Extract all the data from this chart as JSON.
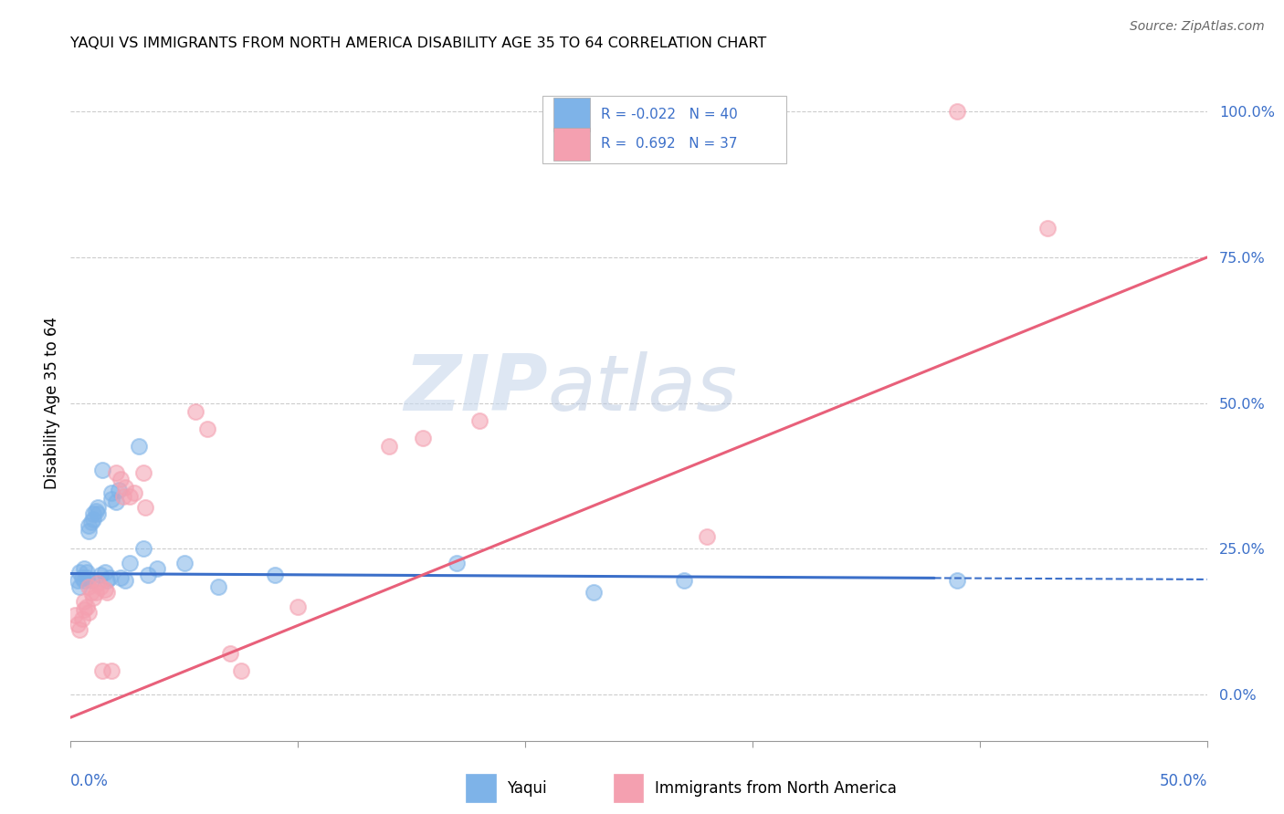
{
  "title": "YAQUI VS IMMIGRANTS FROM NORTH AMERICA DISABILITY AGE 35 TO 64 CORRELATION CHART",
  "source": "Source: ZipAtlas.com",
  "ylabel": "Disability Age 35 to 64",
  "ytick_labels": [
    "0.0%",
    "25.0%",
    "50.0%",
    "75.0%",
    "100.0%"
  ],
  "ytick_values": [
    0.0,
    0.25,
    0.5,
    0.75,
    1.0
  ],
  "xlim": [
    0.0,
    0.5
  ],
  "ylim": [
    -0.08,
    1.08
  ],
  "legend_label_blue": "Yaqui",
  "legend_label_pink": "Immigrants from North America",
  "R_blue": -0.022,
  "N_blue": 40,
  "R_pink": 0.692,
  "N_pink": 37,
  "blue_color": "#7EB3E8",
  "pink_color": "#F4A0B0",
  "blue_line_color": "#3B6FC9",
  "pink_line_color": "#E8607A",
  "watermark_zip": "ZIP",
  "watermark_atlas": "atlas",
  "blue_points": [
    [
      0.003,
      0.195
    ],
    [
      0.004,
      0.185
    ],
    [
      0.004,
      0.21
    ],
    [
      0.005,
      0.2
    ],
    [
      0.006,
      0.215
    ],
    [
      0.006,
      0.195
    ],
    [
      0.007,
      0.2
    ],
    [
      0.007,
      0.21
    ],
    [
      0.008,
      0.29
    ],
    [
      0.008,
      0.28
    ],
    [
      0.009,
      0.295
    ],
    [
      0.009,
      0.195
    ],
    [
      0.01,
      0.3
    ],
    [
      0.01,
      0.31
    ],
    [
      0.011,
      0.315
    ],
    [
      0.012,
      0.32
    ],
    [
      0.012,
      0.31
    ],
    [
      0.013,
      0.205
    ],
    [
      0.014,
      0.385
    ],
    [
      0.015,
      0.21
    ],
    [
      0.016,
      0.195
    ],
    [
      0.017,
      0.2
    ],
    [
      0.018,
      0.335
    ],
    [
      0.018,
      0.345
    ],
    [
      0.02,
      0.33
    ],
    [
      0.021,
      0.35
    ],
    [
      0.022,
      0.2
    ],
    [
      0.024,
      0.195
    ],
    [
      0.026,
      0.225
    ],
    [
      0.03,
      0.425
    ],
    [
      0.032,
      0.25
    ],
    [
      0.034,
      0.205
    ],
    [
      0.038,
      0.215
    ],
    [
      0.05,
      0.225
    ],
    [
      0.065,
      0.185
    ],
    [
      0.09,
      0.205
    ],
    [
      0.17,
      0.225
    ],
    [
      0.27,
      0.195
    ],
    [
      0.39,
      0.195
    ],
    [
      0.23,
      0.175
    ]
  ],
  "pink_points": [
    [
      0.002,
      0.135
    ],
    [
      0.003,
      0.12
    ],
    [
      0.004,
      0.11
    ],
    [
      0.005,
      0.13
    ],
    [
      0.006,
      0.145
    ],
    [
      0.006,
      0.16
    ],
    [
      0.007,
      0.15
    ],
    [
      0.008,
      0.14
    ],
    [
      0.008,
      0.185
    ],
    [
      0.009,
      0.175
    ],
    [
      0.01,
      0.165
    ],
    [
      0.011,
      0.175
    ],
    [
      0.012,
      0.19
    ],
    [
      0.013,
      0.185
    ],
    [
      0.014,
      0.04
    ],
    [
      0.015,
      0.18
    ],
    [
      0.016,
      0.175
    ],
    [
      0.018,
      0.04
    ],
    [
      0.02,
      0.38
    ],
    [
      0.022,
      0.37
    ],
    [
      0.023,
      0.34
    ],
    [
      0.024,
      0.355
    ],
    [
      0.026,
      0.34
    ],
    [
      0.028,
      0.345
    ],
    [
      0.032,
      0.38
    ],
    [
      0.033,
      0.32
    ],
    [
      0.055,
      0.485
    ],
    [
      0.06,
      0.455
    ],
    [
      0.07,
      0.07
    ],
    [
      0.075,
      0.04
    ],
    [
      0.1,
      0.15
    ],
    [
      0.14,
      0.425
    ],
    [
      0.155,
      0.44
    ],
    [
      0.18,
      0.47
    ],
    [
      0.28,
      0.27
    ],
    [
      0.39,
      1.0
    ],
    [
      0.43,
      0.8
    ]
  ],
  "blue_line_x": [
    0.0,
    0.5
  ],
  "blue_line_y": [
    0.207,
    0.197
  ],
  "blue_line_solid_end": 0.38,
  "pink_line_x": [
    0.0,
    0.5
  ],
  "pink_line_y": [
    -0.04,
    0.75
  ]
}
